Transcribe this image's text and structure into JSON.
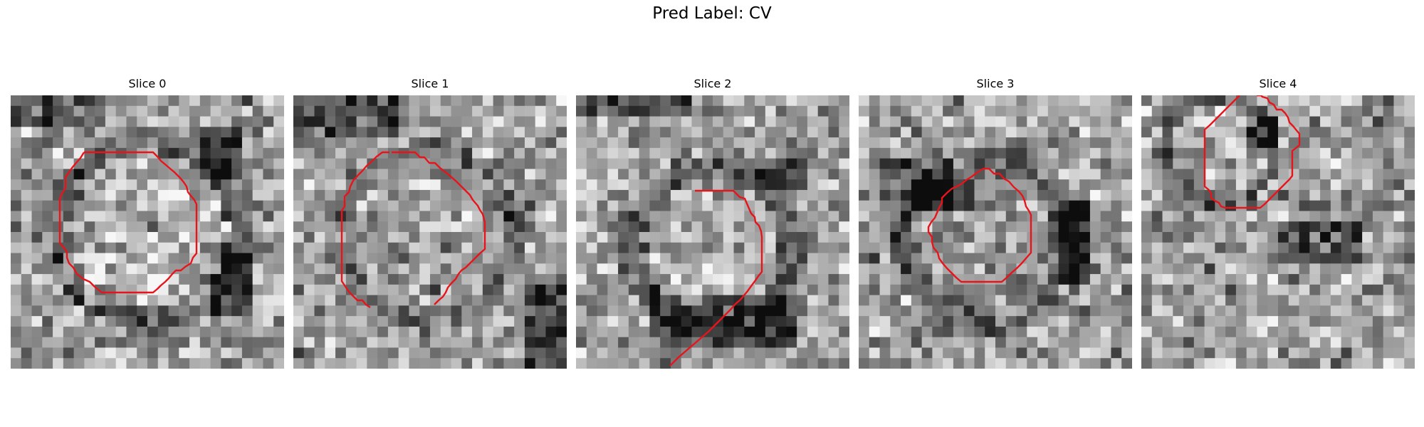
{
  "figure": {
    "title": "Pred Label: CV"
  },
  "slices": [
    {
      "label": "Slice 0"
    },
    {
      "label": "Slice 1"
    },
    {
      "label": "Slice 2"
    },
    {
      "label": "Slice 3"
    },
    {
      "label": "Slice 4"
    }
  ],
  "colors": {
    "contour": "#e8141b",
    "background": "#ffffff"
  }
}
